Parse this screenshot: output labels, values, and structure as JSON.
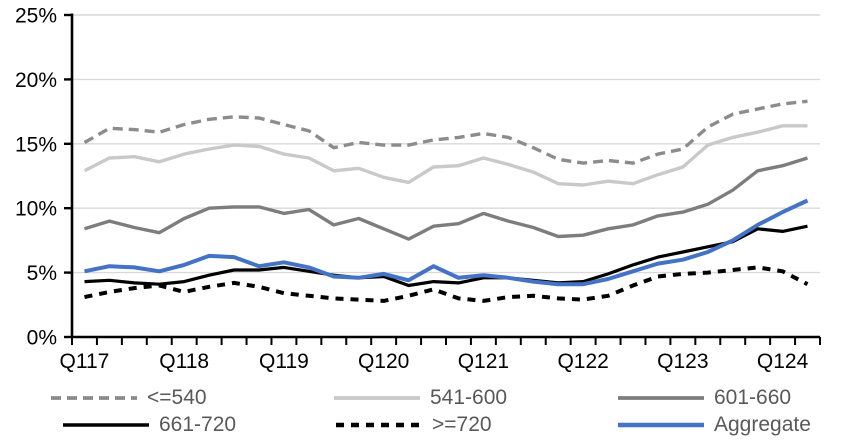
{
  "chart_data": {
    "type": "line",
    "title": "",
    "xlabel": "",
    "ylabel": "",
    "ylim": [
      0,
      25
    ],
    "ytick_step": 5,
    "ytick_labels": [
      "0%",
      "5%",
      "10%",
      "15%",
      "20%",
      "25%"
    ],
    "xtick_labels": [
      "Q117",
      "Q118",
      "Q119",
      "Q120",
      "Q121",
      "Q122",
      "Q123",
      "Q124"
    ],
    "x_label_every": 4,
    "grid": "horizontal",
    "gridline_color": "#D9D9D9",
    "axis_color": "#000000",
    "legend_position": "bottom",
    "categories": [
      "Q117",
      "Q217",
      "Q317",
      "Q417",
      "Q118",
      "Q218",
      "Q318",
      "Q418",
      "Q119",
      "Q219",
      "Q319",
      "Q419",
      "Q120",
      "Q220",
      "Q320",
      "Q420",
      "Q121",
      "Q221",
      "Q321",
      "Q421",
      "Q122",
      "Q222",
      "Q322",
      "Q422",
      "Q123",
      "Q223",
      "Q323",
      "Q423",
      "Q124",
      "Q224"
    ],
    "series": [
      {
        "name": "<=540",
        "color": "#8C8C8C",
        "style": "dashed",
        "values": [
          15.1,
          16.2,
          16.1,
          15.9,
          16.5,
          16.9,
          17.1,
          17.0,
          16.5,
          16.0,
          14.7,
          15.1,
          14.9,
          14.9,
          15.3,
          15.5,
          15.8,
          15.5,
          14.7,
          13.8,
          13.5,
          13.7,
          13.5,
          14.2,
          14.6,
          16.3,
          17.3,
          17.7,
          18.1,
          18.3
        ]
      },
      {
        "name": "541-600",
        "color": "#C9C9C9",
        "style": "solid",
        "values": [
          12.9,
          13.9,
          14.0,
          13.6,
          14.2,
          14.6,
          14.9,
          14.8,
          14.2,
          13.9,
          12.9,
          13.1,
          12.4,
          12.0,
          13.2,
          13.3,
          13.9,
          13.4,
          12.8,
          11.9,
          11.8,
          12.1,
          11.9,
          12.6,
          13.2,
          14.9,
          15.5,
          15.9,
          16.4,
          16.4
        ]
      },
      {
        "name": "601-660",
        "color": "#7D7D7D",
        "style": "solid",
        "values": [
          8.4,
          9.0,
          8.5,
          8.1,
          9.2,
          10.0,
          10.1,
          10.1,
          9.6,
          9.9,
          8.7,
          9.2,
          8.4,
          7.6,
          8.6,
          8.8,
          9.6,
          9.0,
          8.5,
          7.8,
          7.9,
          8.4,
          8.7,
          9.4,
          9.7,
          10.3,
          11.4,
          12.9,
          13.3,
          13.9
        ]
      },
      {
        "name": "661-720",
        "color": "#000000",
        "style": "solid",
        "values": [
          4.3,
          4.4,
          4.2,
          4.1,
          4.3,
          4.8,
          5.2,
          5.2,
          5.4,
          5.1,
          4.8,
          4.6,
          4.7,
          4.0,
          4.3,
          4.2,
          4.6,
          4.6,
          4.4,
          4.2,
          4.3,
          4.9,
          5.6,
          6.2,
          6.6,
          7.0,
          7.4,
          8.4,
          8.2,
          8.6
        ]
      },
      {
        "name": ">=720",
        "color": "#000000",
        "style": "dashed",
        "values": [
          3.1,
          3.5,
          3.8,
          4.0,
          3.5,
          3.9,
          4.2,
          3.9,
          3.4,
          3.2,
          3.0,
          2.9,
          2.8,
          3.2,
          3.7,
          3.0,
          2.8,
          3.1,
          3.2,
          3.0,
          2.9,
          3.2,
          4.0,
          4.7,
          4.9,
          5.0,
          5.2,
          5.4,
          5.1,
          4.1
        ]
      },
      {
        "name": "Aggregate",
        "color": "#4472C4",
        "style": "solid",
        "values": [
          5.1,
          5.5,
          5.4,
          5.1,
          5.6,
          6.3,
          6.2,
          5.5,
          5.8,
          5.4,
          4.7,
          4.6,
          4.9,
          4.4,
          5.5,
          4.6,
          4.8,
          4.6,
          4.3,
          4.1,
          4.1,
          4.5,
          5.1,
          5.7,
          6.0,
          6.6,
          7.5,
          8.7,
          9.7,
          10.6
        ]
      }
    ]
  },
  "legend": {
    "items": [
      "<=540",
      "541-600",
      "601-660",
      "661-720",
      ">=720",
      "Aggregate"
    ],
    "text_color": "#595959"
  }
}
